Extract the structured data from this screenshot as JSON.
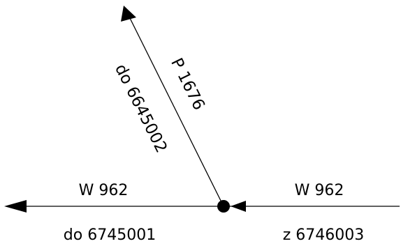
{
  "diagram": {
    "road_left": {
      "name": "W 962",
      "direction": "do 6745001"
    },
    "road_right": {
      "name": "W 962",
      "direction": "z 6746003"
    },
    "road_diagonal": {
      "name": "P 1676",
      "direction": "do 6645002"
    },
    "colors": {
      "line": "#000000",
      "background": "#ffffff"
    }
  }
}
